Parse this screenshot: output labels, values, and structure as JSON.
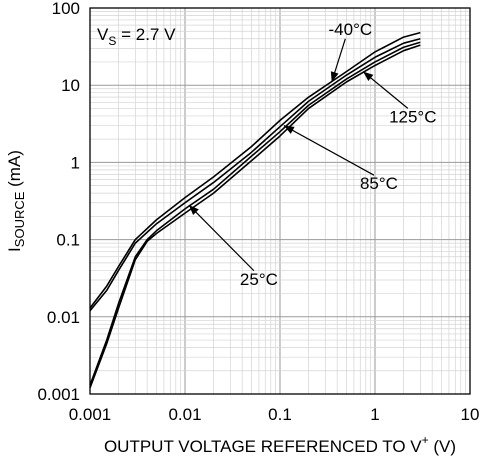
{
  "chart_data": {
    "type": "line",
    "title": "",
    "xlabel": "OUTPUT VOLTAGE REFERENCED TO V",
    "xlabel_sup": "+",
    "xlabel_unit": " (V)",
    "ylabel_main": "I",
    "ylabel_sub": "SOURCE",
    "ylabel_unit": " (mA)",
    "x_scale": "log",
    "y_scale": "log",
    "xlim": [
      0.001,
      10
    ],
    "ylim": [
      0.001,
      100
    ],
    "grid": true,
    "x_ticks": [
      "0.001",
      "0.01",
      "0.1",
      "1",
      "10"
    ],
    "x_tick_values": [
      0.001,
      0.01,
      0.1,
      1,
      10
    ],
    "y_ticks": [
      "0.001",
      "0.01",
      "0.1",
      "1",
      "10",
      "100"
    ],
    "y_tick_values": [
      0.001,
      0.01,
      0.1,
      1,
      10,
      100
    ],
    "condition": {
      "v": "V",
      "sub": "S",
      "rest": " = 2.7 V"
    },
    "series": [
      {
        "name": "-40°C",
        "x": [
          0.001,
          0.0015,
          0.002,
          0.003,
          0.005,
          0.01,
          0.02,
          0.05,
          0.1,
          0.2,
          0.5,
          1,
          2,
          3
        ],
        "y": [
          0.013,
          0.025,
          0.045,
          0.1,
          0.18,
          0.35,
          0.65,
          1.6,
          3.5,
          7,
          15,
          27,
          42,
          48
        ]
      },
      {
        "name": "25°C",
        "x": [
          0.001,
          0.0015,
          0.002,
          0.003,
          0.005,
          0.01,
          0.02,
          0.05,
          0.1,
          0.2,
          0.5,
          1,
          2,
          3
        ],
        "y": [
          0.012,
          0.022,
          0.04,
          0.09,
          0.16,
          0.3,
          0.55,
          1.35,
          2.9,
          6.2,
          13.5,
          23,
          35,
          40
        ]
      },
      {
        "name": "85°C",
        "x": [
          0.001,
          0.0015,
          0.002,
          0.003,
          0.004,
          0.005,
          0.01,
          0.02,
          0.05,
          0.1,
          0.2,
          0.5,
          1,
          2,
          3
        ],
        "y": [
          0.0013,
          0.005,
          0.015,
          0.06,
          0.1,
          0.13,
          0.25,
          0.45,
          1.2,
          2.5,
          5.5,
          12,
          20,
          31,
          36
        ]
      },
      {
        "name": "125°C",
        "x": [
          0.001,
          0.0015,
          0.002,
          0.003,
          0.004,
          0.005,
          0.01,
          0.02,
          0.05,
          0.1,
          0.2,
          0.5,
          1,
          2,
          3
        ],
        "y": [
          0.0012,
          0.0045,
          0.013,
          0.055,
          0.095,
          0.12,
          0.22,
          0.4,
          1.05,
          2.2,
          5,
          11,
          18,
          28,
          33
        ]
      }
    ],
    "annotations": [
      {
        "text": "-40°C",
        "x": 0.55,
        "y": 45,
        "arrow_to": [
          0.35,
          11
        ]
      },
      {
        "text": "125°C",
        "x": 2.5,
        "y": 3.3,
        "arrow_to": [
          0.75,
          15
        ]
      },
      {
        "text": "85°C",
        "x": 1.1,
        "y": 0.45,
        "arrow_to": [
          0.11,
          3
        ]
      },
      {
        "text": "25°C",
        "x": 0.06,
        "y": 0.026,
        "arrow_to": [
          0.011,
          0.28
        ]
      }
    ]
  }
}
